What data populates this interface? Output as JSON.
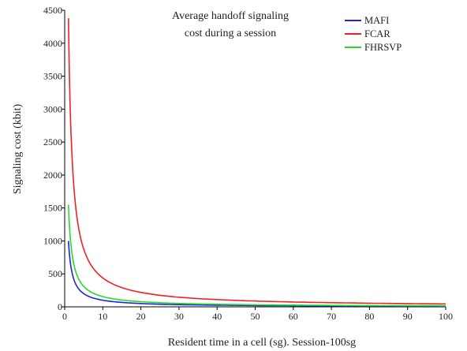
{
  "chart_data": {
    "type": "line",
    "title_lines": [
      "Average handoff signaling",
      "cost during a session"
    ],
    "xlabel": "Resident time in a cell (sg). Session-100sg",
    "ylabel": "Signaling cost (kbit)",
    "xlim": [
      0,
      100
    ],
    "ylim": [
      0,
      4500
    ],
    "xticks": [
      0,
      10,
      20,
      30,
      40,
      50,
      60,
      70,
      80,
      90,
      100
    ],
    "yticks": [
      0,
      500,
      1000,
      1500,
      2000,
      2500,
      3000,
      3500,
      4000,
      4500
    ],
    "grid": false,
    "legend_position": "top-right",
    "series": [
      {
        "name": "MAFI",
        "color": "#2222dd",
        "x": [
          1,
          2,
          3,
          4,
          5,
          7,
          10,
          15,
          20,
          30,
          40,
          50,
          60,
          70,
          80,
          90,
          100
        ],
        "y": [
          1000,
          500,
          333,
          250,
          200,
          143,
          100,
          67,
          50,
          33,
          25,
          20,
          17,
          14,
          12,
          11,
          10
        ]
      },
      {
        "name": "FCAR",
        "color": "#ee2222",
        "x": [
          1,
          2,
          3,
          4,
          5,
          7,
          10,
          15,
          20,
          30,
          40,
          50,
          60,
          70,
          80,
          90,
          100
        ],
        "y": [
          4380,
          2190,
          1460,
          1095,
          876,
          626,
          438,
          292,
          219,
          146,
          110,
          88,
          73,
          63,
          55,
          49,
          44
        ]
      },
      {
        "name": "FHRSVP",
        "color": "#22dd22",
        "x": [
          1,
          2,
          3,
          4,
          5,
          7,
          10,
          15,
          20,
          30,
          40,
          50,
          60,
          70,
          80,
          90,
          100
        ],
        "y": [
          1550,
          775,
          517,
          388,
          310,
          221,
          155,
          103,
          78,
          52,
          39,
          31,
          26,
          22,
          19,
          17,
          16
        ]
      }
    ]
  }
}
